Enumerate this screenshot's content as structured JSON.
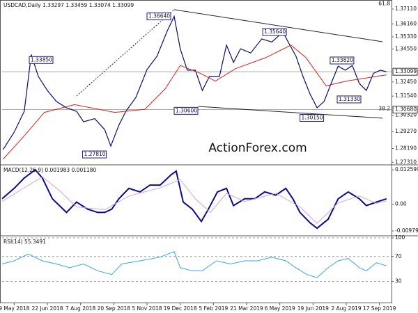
{
  "chart_data": [
    {
      "type": "line",
      "title": "USDCAD,Daily  1.33297 1.33459 1.33074 1.33099",
      "watermark": "ActionForex.com",
      "xlim": [
        -12,
        375
      ],
      "ylim": [
        1.2719,
        1.376
      ],
      "yticks": [
        {
          "value": 1.3711,
          "label": "1.37110"
        },
        {
          "value": 1.3616,
          "label": "1.36160"
        },
        {
          "value": 1.3533,
          "label": "1.35330"
        },
        {
          "value": 1.3455,
          "label": "1.34550"
        },
        {
          "value": 1.3245,
          "label": "1.32450"
        },
        {
          "value": 1.3154,
          "label": "1.31540"
        },
        {
          "value": 1.3032,
          "label": "1.30320"
        },
        {
          "value": 1.2927,
          "label": "1.29270"
        },
        {
          "value": 1.2819,
          "label": "1.28190"
        },
        {
          "value": 1.2731,
          "label": "1.27310"
        }
      ],
      "series": [
        {
          "color": "#0a0a6e",
          "width": 1.2,
          "x": [
            -11,
            0,
            10,
            17,
            24,
            33,
            42,
            52,
            62,
            69,
            80,
            90,
            96,
            104,
            111,
            121,
            132,
            142,
            152,
            159,
            165,
            172,
            180,
            187,
            194,
            204,
            211,
            218,
            225,
            235,
            246,
            256,
            267,
            274,
            280,
            287,
            294,
            301,
            308,
            315,
            322,
            329,
            336,
            343,
            350,
            357,
            364,
            370
          ],
          "values": [
            1.2812,
            1.2923,
            1.3057,
            1.342,
            1.328,
            1.319,
            1.312,
            1.308,
            1.3057,
            1.299,
            1.301,
            1.294,
            1.2834,
            1.2968,
            1.3057,
            1.3146,
            1.3324,
            1.341,
            1.3569,
            1.3664,
            1.3457,
            1.332,
            1.332,
            1.319,
            1.328,
            1.328,
            1.348,
            1.337,
            1.3457,
            1.343,
            1.352,
            1.35,
            1.3564,
            1.348,
            1.341,
            1.328,
            1.3168,
            1.308,
            1.312,
            1.3235,
            1.3346,
            1.332,
            1.335,
            1.3235,
            1.319,
            1.33,
            1.332,
            1.33099
          ]
        },
        {
          "color": "#e0201b",
          "width": 1,
          "x": [
            -11,
            10,
            30,
            60,
            100,
            130,
            150,
            165,
            185,
            200,
            220,
            250,
            275,
            290,
            310,
            330,
            350,
            370
          ],
          "values": [
            1.275,
            1.29,
            1.305,
            1.31,
            1.305,
            1.307,
            1.32,
            1.335,
            1.33,
            1.325,
            1.333,
            1.34,
            1.348,
            1.34,
            1.322,
            1.325,
            1.327,
            1.329
          ]
        }
      ],
      "trendlines": [
        {
          "x": [
            159,
            366
          ],
          "y": [
            1.3707,
            1.3502
          ],
          "style": "solid"
        },
        {
          "x": [
            183,
            366
          ],
          "y": [
            1.3088,
            1.3013
          ],
          "style": "solid"
        },
        {
          "x": [
            62,
            159
          ],
          "y": [
            1.3155,
            1.3707
          ],
          "style": "dotted"
        }
      ],
      "annotations": [
        {
          "x": 15,
          "value": 1.3385,
          "label": "1.33850"
        },
        {
          "x": 132,
          "value": 1.3664,
          "label": "1.36640"
        },
        {
          "x": 247,
          "value": 1.3564,
          "label": "1.35640"
        },
        {
          "x": 68,
          "value": 1.2781,
          "label": "1.27810"
        },
        {
          "x": 159,
          "value": 1.306,
          "label": "1.30600"
        },
        {
          "x": 284,
          "value": 1.3015,
          "label": "1.30150"
        },
        {
          "x": 321,
          "value": 1.3133,
          "label": "1.31330"
        },
        {
          "x": 314,
          "value": 1.3382,
          "label": "1.33820"
        }
      ],
      "levels": [
        {
          "value": 1.3068,
          "label": "1.30680"
        },
        {
          "value": 1.33099,
          "label": "1.33099"
        }
      ],
      "fib": [
        {
          "level": 61.8,
          "price": 1.3745
        },
        {
          "level": 38.2,
          "price": 1.3072
        }
      ]
    },
    {
      "type": "line",
      "title": "MACD(12,26,9) 0.001983 0.001180",
      "xlim": [
        -12,
        375
      ],
      "ylim": [
        -0.0113,
        0.0139
      ],
      "yticks": [
        0.012599,
        {
          "value": 0,
          "label": "0.00"
        },
        -0.00979
      ],
      "series": [
        {
          "color": "#0a0a8c",
          "width": 2,
          "x": [
            -12,
            0,
            10,
            21,
            28,
            38,
            52,
            62,
            73,
            83,
            90,
            97,
            104,
            114,
            125,
            135,
            145,
            156,
            161,
            168,
            177,
            186,
            193,
            202,
            211,
            218,
            229,
            239,
            249,
            260,
            270,
            277,
            284,
            294,
            301,
            312,
            322,
            332,
            343,
            350,
            360,
            370
          ],
          "values": [
            0.002,
            0.0058,
            0.0096,
            0.0126,
            0.0096,
            0.002,
            -0.003,
            0.0008,
            -0.0018,
            -0.003,
            -0.003,
            -0.0018,
            0.002,
            0.0058,
            0.0045,
            0.007,
            0.007,
            0.0108,
            0.0121,
            0.0008,
            -0.0018,
            -0.0063,
            -0.0018,
            0.0045,
            0.0058,
            -0.0005,
            0.002,
            0.002,
            0.0045,
            0.0033,
            0.0058,
            0.002,
            -0.003,
            -0.0068,
            -0.0088,
            -0.0055,
            0.002,
            0.0045,
            0.002,
            -0.0005,
            0.0008,
            0.002
          ]
        },
        {
          "color": "#d9a3cf",
          "width": 1,
          "x": [
            -12,
            10,
            28,
            45,
            62,
            90,
            114,
            145,
            165,
            180,
            195,
            211,
            229,
            260,
            284,
            301,
            322,
            343,
            360,
            370
          ],
          "values": [
            0.001,
            0.006,
            0.01,
            0.005,
            -0.001,
            -0.002,
            0.003,
            0.006,
            0.009,
            0.002,
            -0.003,
            0.004,
            0.001,
            0.004,
            -0.001,
            -0.007,
            0.0005,
            0.003,
            0.0003,
            0.0012
          ]
        }
      ]
    },
    {
      "type": "line",
      "title": "RSI(14) 55.3491",
      "grid": true,
      "xlim": [
        -12,
        375
      ],
      "ylim": [
        -3,
        100
      ],
      "yticks": [
        100,
        70,
        30
      ],
      "xticks": [
        {
          "value": 0,
          "label": "9 May 2018"
        },
        {
          "value": 33,
          "label": "22 Jun 2018"
        },
        {
          "value": 66,
          "label": "7 Aug 2018"
        },
        {
          "value": 99,
          "label": "20 Sep 2018"
        },
        {
          "value": 132,
          "label": "5 Nov 2018"
        },
        {
          "value": 165,
          "label": "19 Dec 2018"
        },
        {
          "value": 198,
          "label": "5 Feb 2019"
        },
        {
          "value": 231,
          "label": "21 Mar 2019"
        },
        {
          "value": 264,
          "label": "6 May 2019"
        },
        {
          "value": 297,
          "label": "19 Jun 2019"
        },
        {
          "value": 330,
          "label": "2 Aug 2019"
        },
        {
          "value": 363,
          "label": "17 Sep 2019"
        }
      ],
      "series": [
        {
          "color": "#3aa6e8",
          "width": 1,
          "x": [
            -12,
            0,
            14,
            28,
            42,
            55,
            69,
            83,
            97,
            107,
            125,
            145,
            159,
            165,
            177,
            187,
            201,
            215,
            229,
            242,
            256,
            270,
            280,
            291,
            301,
            312,
            322,
            332,
            343,
            350,
            360,
            370
          ],
          "values": [
            58,
            63,
            74,
            63,
            58,
            52,
            58,
            47,
            41,
            58,
            63,
            69,
            78,
            52,
            47,
            47,
            63,
            58,
            63,
            63,
            69,
            63,
            52,
            41,
            36,
            52,
            63,
            67,
            52,
            47,
            60,
            55
          ]
        }
      ]
    }
  ]
}
